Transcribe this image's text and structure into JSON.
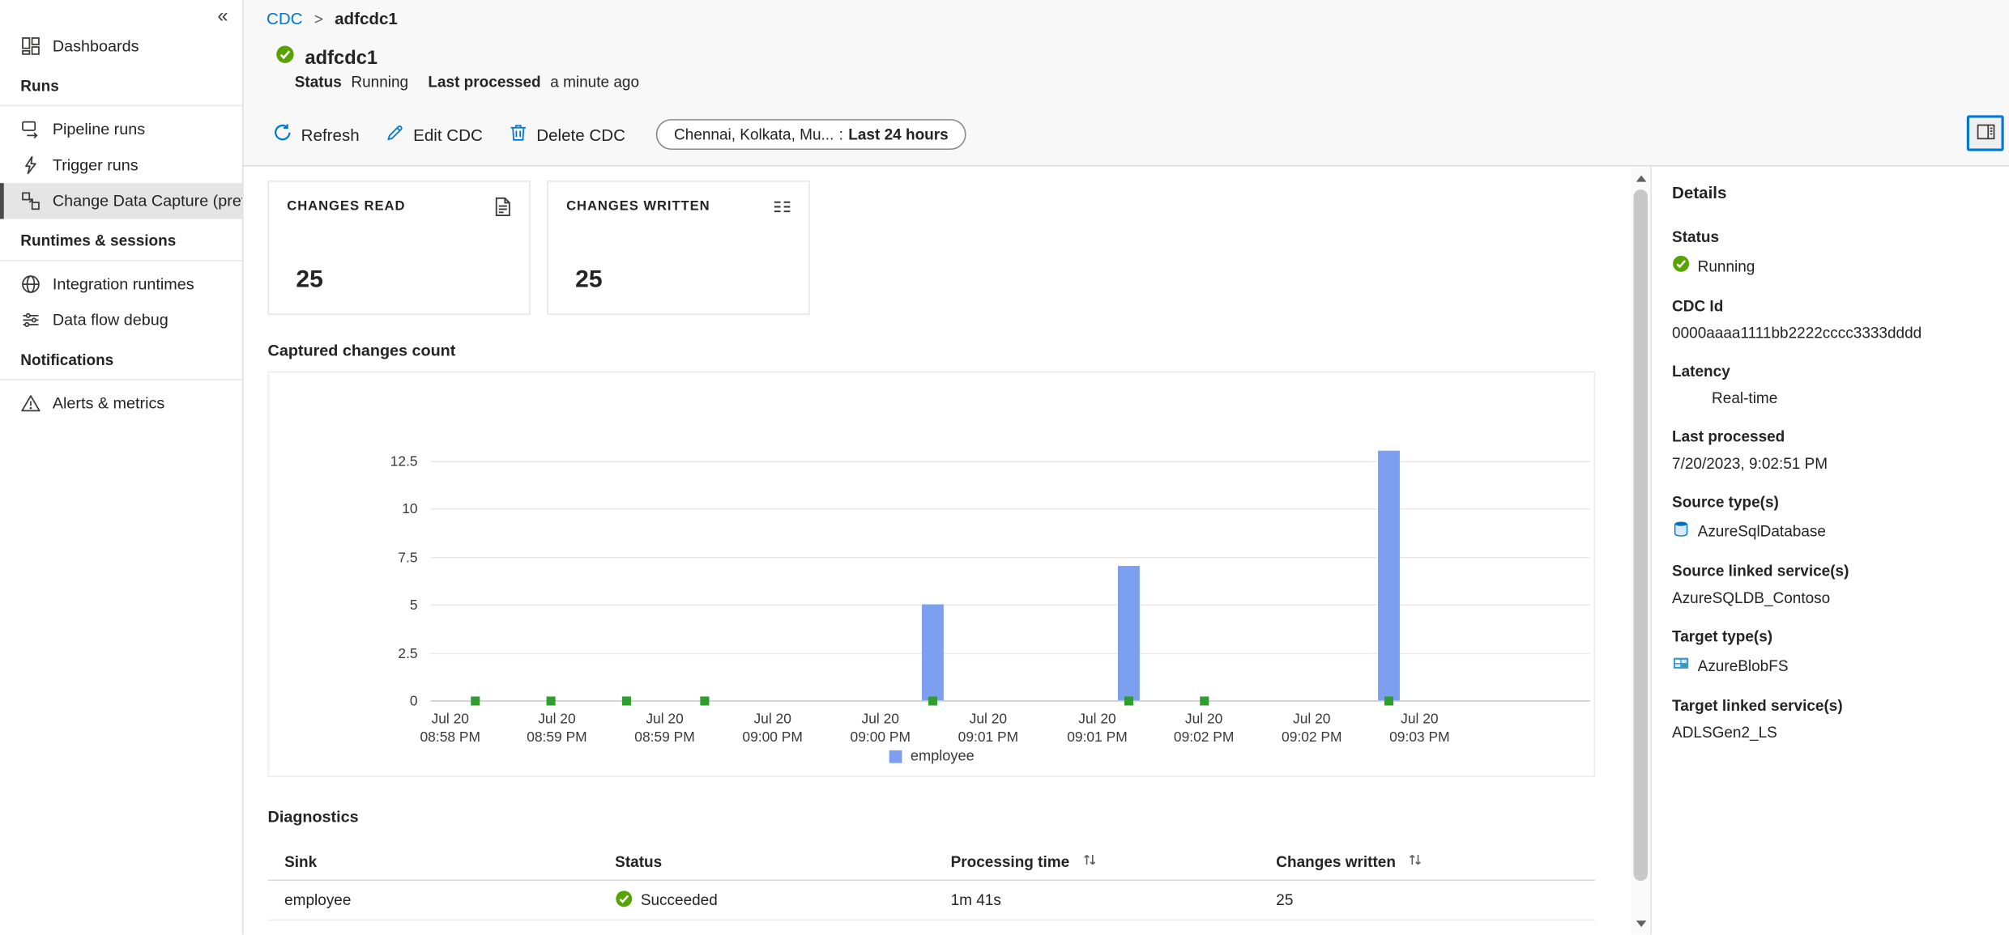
{
  "icons": {
    "collapse": "«"
  },
  "sidebar": {
    "items": [
      {
        "label": "Dashboards"
      },
      {
        "label": "Runs"
      },
      {
        "label": "Pipeline runs"
      },
      {
        "label": "Trigger runs"
      },
      {
        "label": "Change Data Capture (previ..."
      },
      {
        "label": "Runtimes & sessions"
      },
      {
        "label": "Integration runtimes"
      },
      {
        "label": "Data flow debug"
      },
      {
        "label": "Notifications"
      },
      {
        "label": "Alerts & metrics"
      }
    ]
  },
  "breadcrumb": {
    "parent": "CDC",
    "separator": ">",
    "current": "adfcdc1"
  },
  "header": {
    "title": "adfcdc1",
    "status_label": "Status",
    "status_value": "Running",
    "last_processed_label": "Last processed",
    "last_processed_value": "a minute ago"
  },
  "toolbar": {
    "refresh_label": "Refresh",
    "edit_label": "Edit CDC",
    "delete_label": "Delete CDC",
    "filter_prefix": "Chennai, Kolkata, Mu...",
    "filter_separator": ":",
    "filter_value": "Last 24 hours"
  },
  "cards": {
    "read": {
      "title": "CHANGES READ",
      "value": "25"
    },
    "written": {
      "title": "CHANGES WRITTEN",
      "value": "25"
    }
  },
  "chart_data": {
    "type": "bar",
    "title": "Captured changes count",
    "ylim": [
      0,
      14
    ],
    "yticks": [
      0,
      2.5,
      5,
      7.5,
      10,
      12.5
    ],
    "grid": "horizontal",
    "legend_position": "bottom",
    "x_ticks": [
      {
        "line1": "Jul 20",
        "line2": "08:58 PM",
        "x_pct": 1.7
      },
      {
        "line1": "Jul 20",
        "line2": "08:59 PM",
        "x_pct": 10.9
      },
      {
        "line1": "Jul 20",
        "line2": "08:59 PM",
        "x_pct": 20.2
      },
      {
        "line1": "Jul 20",
        "line2": "09:00 PM",
        "x_pct": 29.5
      },
      {
        "line1": "Jul 20",
        "line2": "09:00 PM",
        "x_pct": 38.8
      },
      {
        "line1": "Jul 20",
        "line2": "09:01 PM",
        "x_pct": 48.1
      },
      {
        "line1": "Jul 20",
        "line2": "09:01 PM",
        "x_pct": 57.5
      },
      {
        "line1": "Jul 20",
        "line2": "09:02 PM",
        "x_pct": 66.7
      },
      {
        "line1": "Jul 20",
        "line2": "09:02 PM",
        "x_pct": 76.0
      },
      {
        "line1": "Jul 20",
        "line2": "09:03 PM",
        "x_pct": 85.3
      }
    ],
    "series": [
      {
        "name": "employee",
        "color": "#7C9FF0",
        "bars": [
          {
            "x_pct": 43.3,
            "value": 5
          },
          {
            "x_pct": 60.2,
            "value": 7
          },
          {
            "x_pct": 82.7,
            "value": 13
          }
        ]
      }
    ],
    "zero_markers": {
      "color": "#2F9E2F",
      "x_pcts": [
        3.9,
        10.4,
        16.9,
        23.6,
        43.3,
        60.2,
        66.7,
        82.7
      ]
    }
  },
  "diagnostics": {
    "title": "Diagnostics",
    "columns": [
      "Sink",
      "Status",
      "Processing time",
      "Changes written"
    ],
    "rows": [
      {
        "sink": "employee",
        "status": "Succeeded",
        "processing_time": "1m 41s",
        "changes_written": "25"
      }
    ]
  },
  "details": {
    "title": "Details",
    "status_label": "Status",
    "status_value": "Running",
    "cdc_id_label": "CDC Id",
    "cdc_id_value": "0000aaaa1111bb2222cccc3333dddd",
    "latency_label": "Latency",
    "latency_value": "Real-time",
    "last_processed_label": "Last processed",
    "last_processed_value": "7/20/2023, 9:02:51 PM",
    "source_type_label": "Source type(s)",
    "source_type_value": "AzureSqlDatabase",
    "source_linked_label": "Source linked service(s)",
    "source_linked_value": "AzureSQLDB_Contoso",
    "target_type_label": "Target type(s)",
    "target_type_value": "AzureBlobFS",
    "target_linked_label": "Target linked service(s)",
    "target_linked_value": "ADLSGen2_LS"
  },
  "colors": {
    "accent": "#0078d4",
    "success_green": "#57A300",
    "bar_blue": "#7C9FF0",
    "marker_green": "#2F9E2F"
  }
}
